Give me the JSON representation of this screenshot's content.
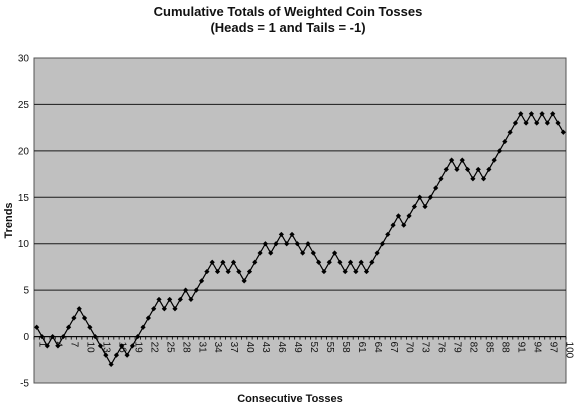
{
  "chart_data": {
    "type": "line",
    "title": "Cumulative Totals of Weighted Coin Tosses",
    "subtitle": "(Heads = 1 and Tails = -1)",
    "xlabel": "Consecutive Tosses",
    "ylabel": "Trends",
    "ylim": [
      -5,
      30
    ],
    "yticks": [
      -5,
      0,
      5,
      10,
      15,
      20,
      25,
      30
    ],
    "xticks": [
      1,
      4,
      7,
      10,
      13,
      16,
      19,
      22,
      25,
      28,
      31,
      34,
      37,
      40,
      43,
      46,
      49,
      52,
      55,
      58,
      61,
      64,
      67,
      70,
      73,
      76,
      79,
      82,
      85,
      88,
      91,
      94,
      97,
      100
    ],
    "grid": true,
    "legend": "none",
    "plot_color": "#c0c0c0",
    "line_color": "#000000",
    "x": [
      1,
      2,
      3,
      4,
      5,
      6,
      7,
      8,
      9,
      10,
      11,
      12,
      13,
      14,
      15,
      16,
      17,
      18,
      19,
      20,
      21,
      22,
      23,
      24,
      25,
      26,
      27,
      28,
      29,
      30,
      31,
      32,
      33,
      34,
      35,
      36,
      37,
      38,
      39,
      40,
      41,
      42,
      43,
      44,
      45,
      46,
      47,
      48,
      49,
      50,
      51,
      52,
      53,
      54,
      55,
      56,
      57,
      58,
      59,
      60,
      61,
      62,
      63,
      64,
      65,
      66,
      67,
      68,
      69,
      70,
      71,
      72,
      73,
      74,
      75,
      76,
      77,
      78,
      79,
      80,
      81,
      82,
      83,
      84,
      85,
      86,
      87,
      88,
      89,
      90,
      91,
      92,
      93,
      94,
      95,
      96,
      97,
      98,
      99,
      100
    ],
    "series": [
      {
        "values": [
          1,
          0,
          -1,
          0,
          -1,
          0,
          1,
          2,
          3,
          2,
          1,
          0,
          -1,
          -2,
          -3,
          -2,
          -1,
          -2,
          -1,
          0,
          1,
          2,
          3,
          4,
          3,
          4,
          3,
          4,
          5,
          4,
          5,
          6,
          7,
          8,
          7,
          8,
          7,
          8,
          7,
          6,
          7,
          8,
          9,
          10,
          9,
          10,
          11,
          10,
          11,
          10,
          9,
          10,
          9,
          8,
          7,
          8,
          9,
          8,
          7,
          8,
          7,
          8,
          7,
          8,
          9,
          10,
          11,
          12,
          13,
          12,
          13,
          14,
          15,
          14,
          15,
          16,
          17,
          18,
          19,
          18,
          19,
          18,
          17,
          18,
          17,
          18,
          19,
          20,
          21,
          22,
          23,
          24,
          23,
          24,
          23,
          24,
          23,
          24,
          23,
          22
        ]
      }
    ]
  }
}
